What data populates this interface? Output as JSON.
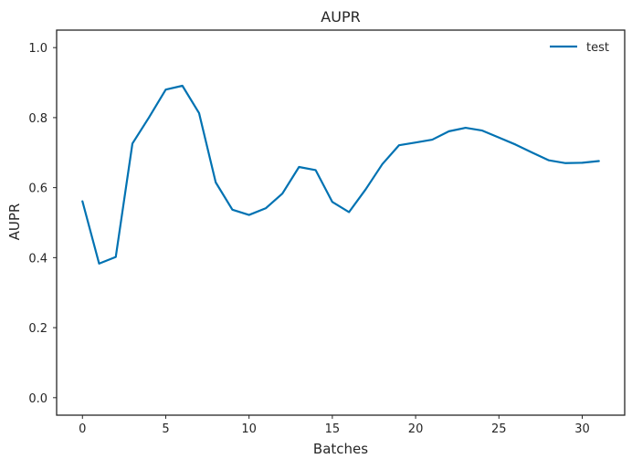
{
  "chart_data": {
    "type": "line",
    "title": "AUPR",
    "xlabel": "Batches",
    "ylabel": "AUPR",
    "xlim": [
      -1.55,
      32.55
    ],
    "ylim": [
      -0.05,
      1.05
    ],
    "x_ticks": [
      0,
      5,
      10,
      15,
      20,
      25,
      30
    ],
    "y_ticks": [
      0.0,
      0.2,
      0.4,
      0.6,
      0.8,
      1.0
    ],
    "x_tick_labels": [
      "0",
      "5",
      "10",
      "15",
      "20",
      "25",
      "30"
    ],
    "y_tick_labels": [
      "0.0",
      "0.2",
      "0.4",
      "0.6",
      "0.8",
      "1.0"
    ],
    "grid": false,
    "legend": {
      "position": "top-right",
      "entries": [
        "test"
      ]
    },
    "series": [
      {
        "name": "test",
        "color": "#0072b2",
        "x": [
          0,
          1,
          2,
          3,
          4,
          5,
          6,
          7,
          8,
          9,
          10,
          11,
          12,
          13,
          14,
          15,
          16,
          17,
          18,
          19,
          20,
          21,
          22,
          23,
          24,
          25,
          26,
          27,
          28,
          29,
          30,
          31
        ],
        "values": [
          0.561,
          0.383,
          0.402,
          0.726,
          0.801,
          0.88,
          0.891,
          0.813,
          0.615,
          0.537,
          0.522,
          0.541,
          0.583,
          0.659,
          0.65,
          0.559,
          0.53,
          0.595,
          0.667,
          0.721,
          0.729,
          0.737,
          0.761,
          0.771,
          0.763,
          0.743,
          0.723,
          0.7,
          0.678,
          0.67,
          0.671,
          0.676
        ]
      }
    ]
  }
}
